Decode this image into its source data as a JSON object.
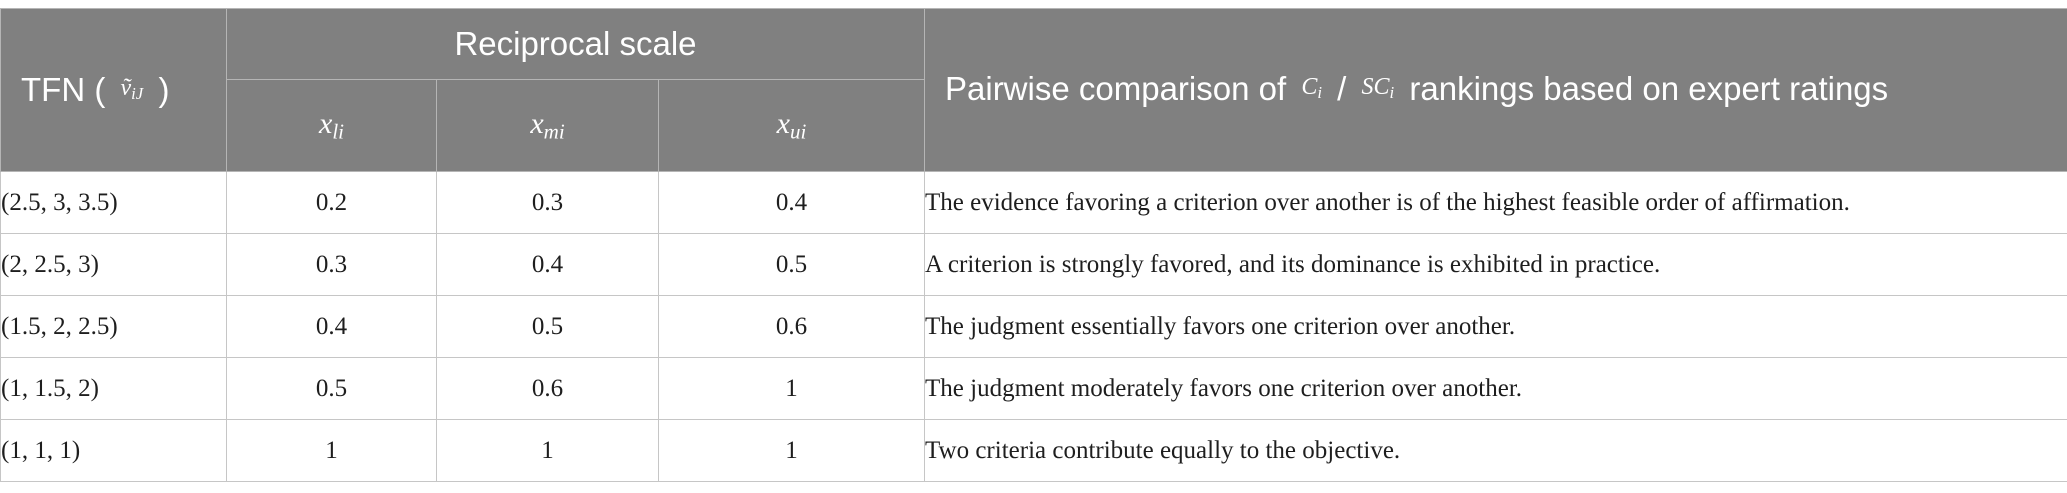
{
  "header": {
    "tfn_label": "TFN (",
    "tfn_symbol": "ṽ",
    "tfn_symbol_sub": "iJ",
    "tfn_close": ")",
    "reciprocal_label": "Reciprocal scale",
    "sub_columns": [
      {
        "base": "x",
        "sub": "li"
      },
      {
        "base": "x",
        "sub": "mi"
      },
      {
        "base": "x",
        "sub": "ui"
      }
    ],
    "description_prefix": "Pairwise comparison of",
    "c_symbol": "C",
    "c_sub": "i",
    "slash": "/",
    "sc_symbol": "SC",
    "sc_sub": "i",
    "description_suffix": "rankings based on expert ratings"
  },
  "rows": [
    {
      "tfn": "(2.5, 3, 3.5)",
      "xl": "0.2",
      "xm": "0.3",
      "xu": "0.4",
      "desc": "The evidence favoring a criterion over another is of the highest feasible order of affirmation."
    },
    {
      "tfn": "(2, 2.5, 3)",
      "xl": "0.3",
      "xm": "0.4",
      "xu": "0.5",
      "desc": "A criterion is strongly favored, and its dominance is exhibited in practice."
    },
    {
      "tfn": "(1.5, 2, 2.5)",
      "xl": "0.4",
      "xm": "0.5",
      "xu": "0.6",
      "desc": "The judgment essentially favors one criterion over another."
    },
    {
      "tfn": "(1, 1.5, 2)",
      "xl": "0.5",
      "xm": "0.6",
      "xu": "1",
      "desc": "The judgment moderately favors one criterion over another."
    },
    {
      "tfn": "(1, 1, 1)",
      "xl": "1",
      "xm": "1",
      "xu": "1",
      "desc": "Two criteria contribute equally to the objective."
    }
  ]
}
